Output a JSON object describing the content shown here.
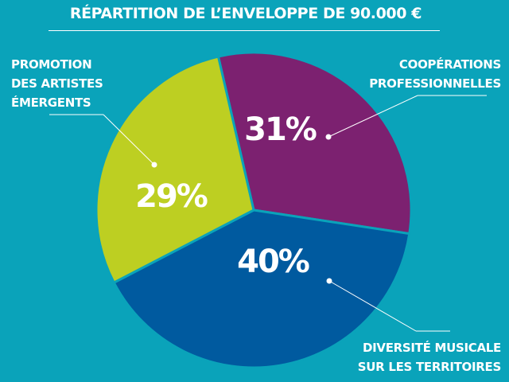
{
  "chart_data": {
    "type": "pie",
    "title": "RÉPARTITION DE L’ENVELOPPE DE 90.000 €",
    "slices": [
      {
        "label_lines": [
          "COOPÉRATIONS",
          "PROFESSIONNELLES"
        ],
        "value": 31,
        "value_label": "31%",
        "color": "#7c2170"
      },
      {
        "label_lines": [
          "DIVERSITÉ MUSICALE",
          "SUR LES TERRITOIRES"
        ],
        "value": 40,
        "value_label": "40%",
        "color": "#005a9f"
      },
      {
        "label_lines": [
          "PROMOTION",
          "DES ARTISTES",
          "ÉMERGENTS"
        ],
        "value": 29,
        "value_label": "29%",
        "color": "#bdcf22"
      }
    ],
    "background_color": "#0aa3ba",
    "separator_color": "#0aa3ba",
    "text_color": "#ffffff"
  }
}
